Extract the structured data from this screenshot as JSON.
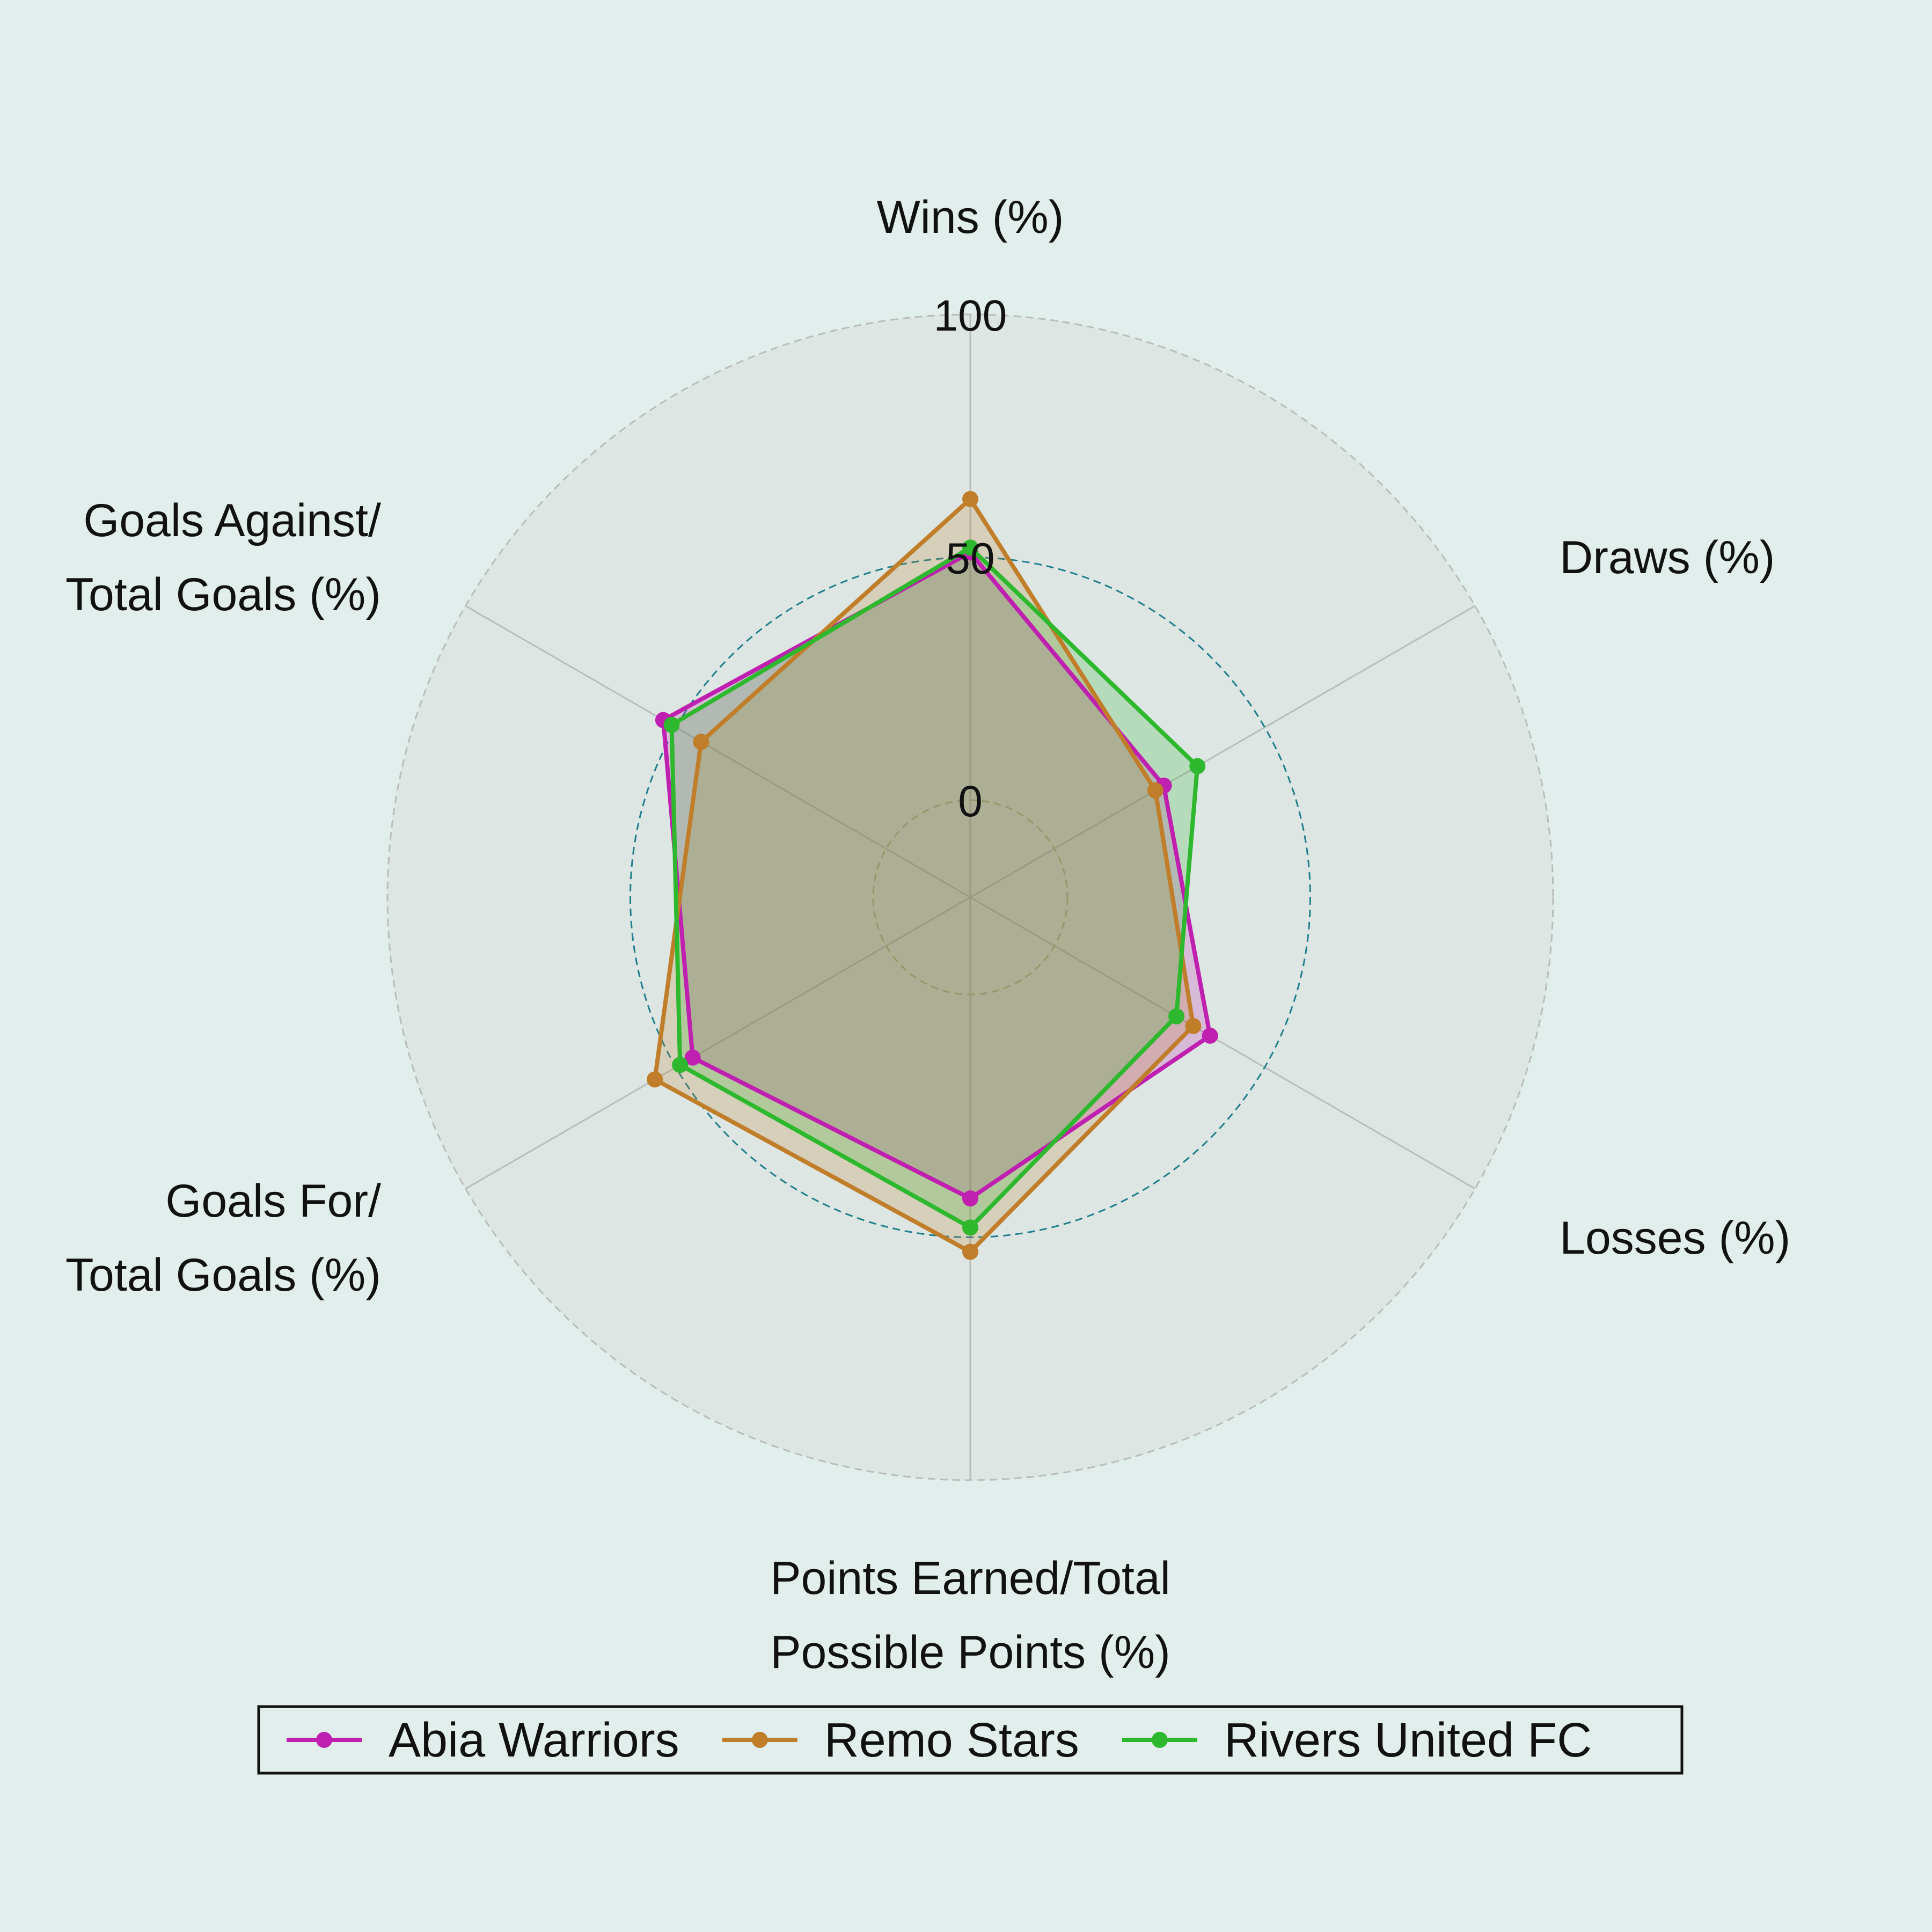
{
  "chart_data": {
    "type": "radar",
    "axes": [
      [
        "Wins (%)"
      ],
      [
        "Draws (%)"
      ],
      [
        "Losses (%)"
      ],
      [
        "Points Earned/Total",
        "Possible Points (%)"
      ],
      [
        "Goals For/",
        "Total Goals (%)"
      ],
      [
        "Goals Against/",
        "Total Goals (%)"
      ]
    ],
    "radial_ticks": [
      {
        "value": 0,
        "label": "0"
      },
      {
        "value": 50,
        "label": "50"
      },
      {
        "value": 100,
        "label": "100"
      }
    ],
    "rlim": [
      -20,
      100
    ],
    "series": [
      {
        "name": "Abia Warriors",
        "color": "#c020b0",
        "values": [
          51,
          26,
          37,
          42,
          46,
          53
        ]
      },
      {
        "name": "Remo Stars",
        "color": "#c07e2a",
        "values": [
          62,
          24,
          33,
          53,
          55,
          44
        ]
      },
      {
        "name": "Rivers United FC",
        "color": "#2db82d",
        "values": [
          52,
          34,
          29,
          48,
          49,
          51
        ]
      }
    ],
    "legend_position": "bottom",
    "grid": true
  }
}
